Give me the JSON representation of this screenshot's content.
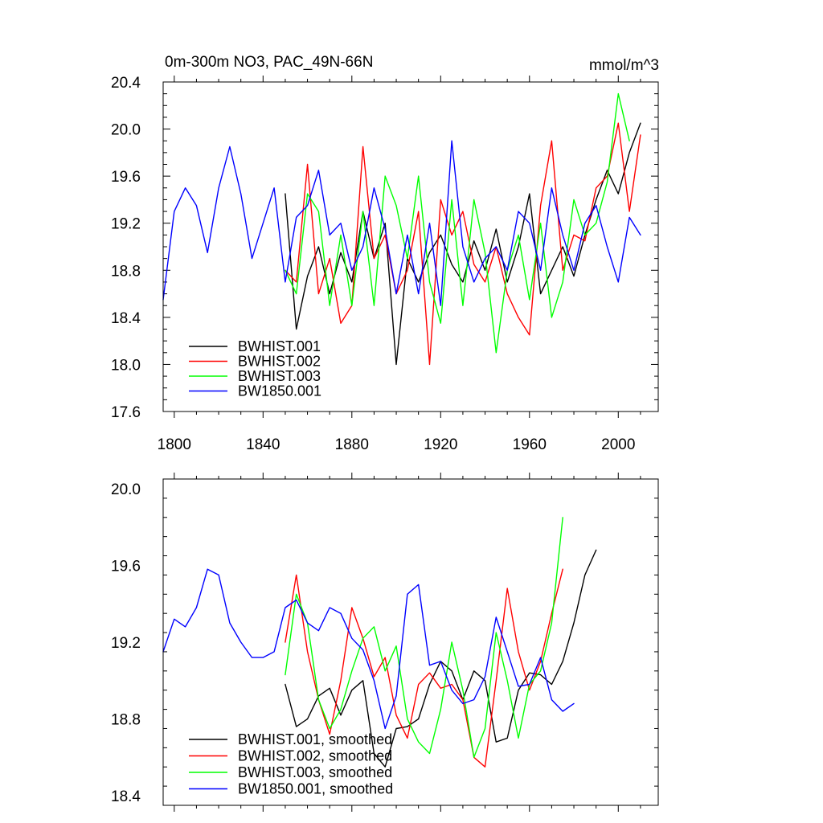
{
  "chart_data": [
    {
      "type": "line",
      "title": "0m-300m NO3, PAC_49N-66N",
      "units": "mmol/m^3",
      "xlim": [
        1795,
        2018
      ],
      "ylim": [
        17.6,
        20.4
      ],
      "xticks": [
        1800,
        1840,
        1880,
        1920,
        1960,
        2000
      ],
      "yticks": [
        17.6,
        18.0,
        18.4,
        18.8,
        19.2,
        19.6,
        20.0,
        20.4
      ],
      "ytick_labels": [
        "17.6",
        "18.0",
        "18.4",
        "18.8",
        "19.2",
        "19.6",
        "20.0",
        "20.4"
      ],
      "grid": false,
      "legend": "bottom-left",
      "series": [
        {
          "name": "BWHIST.001",
          "color": "#000000",
          "x_start": 1850,
          "x_step": 5,
          "values": [
            19.45,
            18.3,
            18.75,
            19.0,
            18.6,
            18.95,
            18.7,
            19.3,
            18.9,
            19.2,
            18.0,
            18.9,
            18.7,
            18.95,
            19.1,
            18.85,
            18.7,
            19.05,
            18.8,
            19.15,
            18.7,
            19.0,
            19.45,
            18.6,
            18.8,
            19.0,
            18.75,
            19.1,
            19.4,
            19.65,
            19.45,
            19.8,
            20.05
          ]
        },
        {
          "name": "BWHIST.002",
          "color": "#ff0000",
          "x_start": 1850,
          "x_step": 5,
          "values": [
            18.8,
            18.7,
            19.7,
            18.6,
            18.9,
            18.35,
            18.5,
            19.85,
            18.9,
            19.1,
            18.6,
            18.8,
            19.3,
            18.0,
            19.4,
            19.1,
            19.3,
            18.85,
            18.7,
            19.0,
            18.6,
            18.4,
            18.25,
            19.35,
            19.9,
            18.8,
            19.1,
            19.05,
            19.5,
            19.6,
            20.05,
            19.3,
            19.95
          ]
        },
        {
          "name": "BWHIST.003",
          "color": "#00ff00",
          "x_start": 1850,
          "x_step": 5,
          "values": [
            18.8,
            18.6,
            19.45,
            19.3,
            18.5,
            19.1,
            18.5,
            19.3,
            18.5,
            19.6,
            19.35,
            18.9,
            19.6,
            18.7,
            18.35,
            19.4,
            18.5,
            19.4,
            18.95,
            18.1,
            18.8,
            19.1,
            18.55,
            19.2,
            18.4,
            18.7,
            19.4,
            19.1,
            19.2,
            19.55,
            20.3,
            19.9
          ]
        },
        {
          "name": "BW1850.001",
          "color": "#0000ff",
          "x_start": 1795,
          "x_step": 5,
          "values": [
            18.55,
            19.3,
            19.5,
            19.35,
            18.95,
            19.5,
            19.85,
            19.45,
            18.9,
            19.2,
            19.5,
            18.7,
            19.25,
            19.35,
            19.65,
            19.1,
            19.2,
            18.8,
            19.0,
            19.5,
            19.15,
            18.6,
            19.1,
            18.6,
            19.2,
            18.5,
            19.9,
            19.0,
            18.7,
            18.9,
            19.0,
            18.8,
            19.3,
            19.2,
            18.8,
            19.5,
            19.1,
            18.8,
            19.2,
            19.35,
            19.0,
            18.7,
            19.25,
            19.1
          ]
        }
      ]
    },
    {
      "type": "line",
      "xlim": [
        1795,
        2018
      ],
      "ylim": [
        18.35,
        20.05
      ],
      "xticks": [
        1800,
        1840,
        1880,
        1920,
        1960,
        2000
      ],
      "yticks": [
        18.4,
        18.8,
        19.2,
        19.6,
        20.0
      ],
      "ytick_labels": [
        "18.4",
        "18.8",
        "19.2",
        "19.6",
        "20.0"
      ],
      "grid": false,
      "legend": "bottom-left",
      "series": [
        {
          "name": "BWHIST.001, smoothed",
          "color": "#000000",
          "x_start": 1850,
          "x_step": 5,
          "values": [
            18.98,
            18.76,
            18.8,
            18.92,
            18.96,
            18.82,
            18.95,
            19.0,
            18.62,
            18.55,
            18.75,
            18.76,
            18.8,
            18.98,
            19.1,
            19.05,
            18.9,
            19.05,
            19.0,
            18.68,
            18.7,
            18.95,
            19.04,
            19.03,
            18.98,
            19.1,
            19.3,
            19.55,
            19.68
          ]
        },
        {
          "name": "BWHIST.002, smoothed",
          "color": "#ff0000",
          "x_start": 1850,
          "x_step": 5,
          "values": [
            19.2,
            19.55,
            19.15,
            18.9,
            18.72,
            19.0,
            19.38,
            19.22,
            19.02,
            19.12,
            18.82,
            18.7,
            18.98,
            19.04,
            18.96,
            18.98,
            18.9,
            18.6,
            18.55,
            19.0,
            19.48,
            19.15,
            18.95,
            19.1,
            19.35,
            19.58
          ]
        },
        {
          "name": "BWHIST.003, smoothed",
          "color": "#00ff00",
          "x_start": 1850,
          "x_step": 5,
          "values": [
            19.03,
            19.45,
            19.3,
            18.9,
            18.75,
            18.85,
            19.05,
            19.22,
            19.28,
            19.05,
            19.18,
            18.8,
            18.68,
            18.62,
            18.85,
            19.2,
            18.95,
            18.6,
            18.75,
            19.25,
            19.0,
            18.7,
            18.98,
            19.05,
            19.3,
            19.85
          ]
        },
        {
          "name": "BW1850.001, smoothed",
          "color": "#0000ff",
          "x_start": 1795,
          "x_step": 5,
          "values": [
            19.15,
            19.32,
            19.28,
            19.38,
            19.58,
            19.55,
            19.3,
            19.2,
            19.12,
            19.12,
            19.15,
            19.38,
            19.42,
            19.3,
            19.26,
            19.38,
            19.35,
            19.22,
            19.16,
            19.0,
            18.75,
            18.92,
            19.45,
            19.5,
            19.08,
            19.1,
            18.95,
            18.88,
            18.9,
            19.02,
            19.33,
            19.15,
            18.97,
            18.98,
            19.12,
            18.9,
            18.84,
            18.88
          ]
        }
      ]
    }
  ]
}
